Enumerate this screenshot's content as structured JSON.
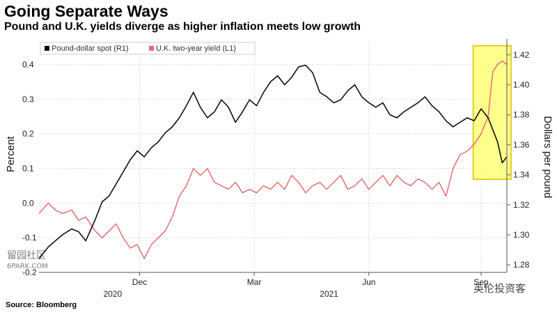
{
  "header": {
    "title": "Going Separate Ways",
    "subtitle": "Pound and U.K. yields diverge as higher inflation meets low growth"
  },
  "footer": {
    "source": "Source: Bloomberg"
  },
  "watermarks": {
    "left": "留园社区",
    "left_sub": "6PARK.COM",
    "right": "英伦投资客"
  },
  "colors": {
    "spot": "#000000",
    "yield": "#e46e72",
    "highlight_fill": "#ffff66",
    "highlight_stroke": "#d6c200",
    "grid": "#d9d9d9"
  },
  "chart_data": {
    "type": "line",
    "title": "Going Separate Ways",
    "subtitle": "Pound and U.K. yields diverge as higher inflation meets low growth",
    "x_ticks": [
      "Dec",
      "Mar",
      "Jun",
      "Sep"
    ],
    "x_year_labels": [
      "2020",
      "2021"
    ],
    "x_range": [
      0,
      100
    ],
    "x_tick_positions": [
      21.5,
      46.0,
      70.5,
      94.5
    ],
    "left_axis": {
      "label": "Percent",
      "range": [
        -0.2,
        0.45
      ],
      "ticks": [
        -0.2,
        -0.1,
        0.0,
        0.1,
        0.2,
        0.3,
        0.4
      ],
      "tick_labels": [
        "-0.2",
        "-0.1",
        "0.0",
        "0.1",
        "0.2",
        "0.3",
        "0.4"
      ]
    },
    "right_axis": {
      "label": "Dollars per pound",
      "range": [
        1.275,
        1.425
      ],
      "ticks": [
        1.28,
        1.3,
        1.32,
        1.34,
        1.36,
        1.38,
        1.4,
        1.42
      ],
      "tick_labels": [
        "1.28",
        "1.30",
        "1.32",
        "1.34",
        "1.36",
        "1.38",
        "1.40",
        "1.42"
      ]
    },
    "legend": {
      "placement": "top-left",
      "entries": [
        "Pound-dollar spot (R1)",
        "U.K. two-year yield (L1)"
      ]
    },
    "highlight": {
      "x_range": [
        92.8,
        100.9
      ],
      "y_range_right": [
        1.337,
        1.426
      ]
    },
    "grid": true,
    "series": [
      {
        "name": "Pound-dollar spot (R1)",
        "axis": "right",
        "x": [
          0,
          2,
          3.5,
          5,
          7,
          8.5,
          10,
          12,
          13.5,
          15,
          16.5,
          18,
          19.5,
          21,
          22.5,
          24,
          25.5,
          27,
          28.5,
          30,
          31.5,
          33,
          34.5,
          36,
          37.5,
          39,
          40.5,
          42,
          43.5,
          45,
          46.5,
          48,
          49.5,
          51,
          52.5,
          54,
          55.5,
          57,
          58.5,
          60,
          61.5,
          63,
          64.5,
          66,
          67.5,
          69,
          70.5,
          72,
          73.5,
          75,
          76.5,
          78,
          79.5,
          81,
          82.5,
          84,
          85.5,
          87,
          88.5,
          90,
          91.5,
          93,
          94.5,
          96,
          97,
          98,
          99,
          100
        ],
        "y": [
          1.284,
          1.292,
          1.296,
          1.3,
          1.304,
          1.302,
          1.296,
          1.31,
          1.322,
          1.326,
          1.334,
          1.342,
          1.35,
          1.356,
          1.352,
          1.358,
          1.362,
          1.368,
          1.372,
          1.378,
          1.386,
          1.395,
          1.385,
          1.378,
          1.382,
          1.39,
          1.385,
          1.375,
          1.382,
          1.39,
          1.386,
          1.395,
          1.402,
          1.406,
          1.4,
          1.405,
          1.412,
          1.413,
          1.408,
          1.395,
          1.392,
          1.388,
          1.39,
          1.396,
          1.4,
          1.392,
          1.388,
          1.385,
          1.388,
          1.38,
          1.378,
          1.382,
          1.385,
          1.388,
          1.392,
          1.386,
          1.382,
          1.376,
          1.372,
          1.375,
          1.378,
          1.376,
          1.384,
          1.378,
          1.37,
          1.362,
          1.348,
          1.352
        ]
      },
      {
        "name": "U.K. two-year yield (L1)",
        "axis": "left",
        "x": [
          0,
          2,
          3.5,
          5,
          7,
          8.5,
          10,
          12,
          13.5,
          15,
          16.5,
          18,
          19.5,
          21,
          22.5,
          24,
          25.5,
          27,
          28.5,
          30,
          31.5,
          33,
          34.5,
          36,
          37.5,
          39,
          40.5,
          42,
          43.5,
          45,
          46.5,
          48,
          49.5,
          51,
          52.5,
          54,
          55.5,
          57,
          58.5,
          60,
          61.5,
          63,
          64.5,
          66,
          67.5,
          69,
          70.5,
          72,
          73.5,
          75,
          76.5,
          78,
          79.5,
          81,
          82.5,
          84,
          85.5,
          87,
          88.5,
          90,
          91.5,
          93,
          94.5,
          96,
          97,
          98,
          99,
          100
        ],
        "y": [
          -0.03,
          0.0,
          -0.02,
          -0.03,
          -0.02,
          -0.05,
          -0.04,
          -0.08,
          -0.1,
          -0.08,
          -0.06,
          -0.1,
          -0.13,
          -0.12,
          -0.16,
          -0.12,
          -0.1,
          -0.08,
          -0.04,
          0.02,
          0.05,
          0.1,
          0.08,
          0.1,
          0.06,
          0.05,
          0.04,
          0.06,
          0.03,
          0.04,
          0.03,
          0.05,
          0.04,
          0.06,
          0.04,
          0.08,
          0.06,
          0.03,
          0.05,
          0.06,
          0.04,
          0.06,
          0.08,
          0.04,
          0.05,
          0.07,
          0.04,
          0.06,
          0.08,
          0.05,
          0.08,
          0.06,
          0.05,
          0.07,
          0.06,
          0.04,
          0.06,
          0.02,
          0.1,
          0.14,
          0.15,
          0.17,
          0.2,
          0.25,
          0.38,
          0.4,
          0.41,
          0.4
        ]
      }
    ]
  }
}
